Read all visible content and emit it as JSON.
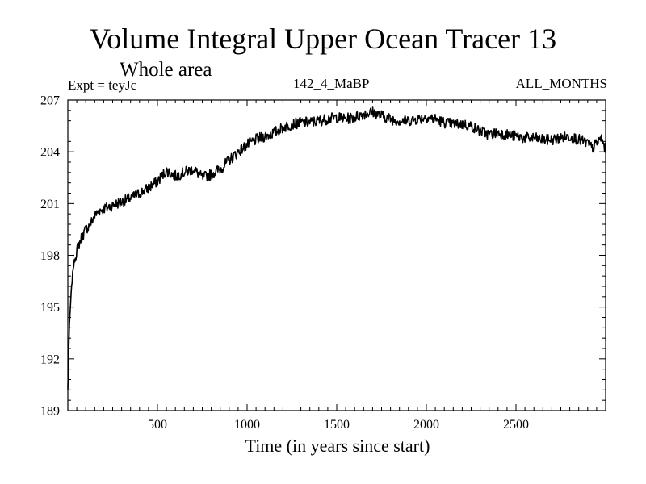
{
  "chart_data": {
    "type": "line",
    "title": "Volume Integral Upper Ocean Tracer 13",
    "subtitle": "Whole area",
    "expt_label": "Expt = teyJc",
    "run_label": "142_4_MaBP",
    "period_label": "ALL_MONTHS",
    "xlabel": "Time (in years since start)",
    "ylabel": "",
    "xlim": [
      0,
      3000
    ],
    "ylim": [
      189,
      207
    ],
    "x_ticks": [
      500,
      1000,
      1500,
      2000,
      2500
    ],
    "y_ticks": [
      189,
      192,
      195,
      198,
      201,
      204,
      207
    ],
    "x_tick_labels": [
      "500",
      "1000",
      "1500",
      "2000",
      "2500"
    ],
    "y_tick_labels": [
      "189",
      "192",
      "195",
      "198",
      "201",
      "204",
      "207"
    ],
    "line_color": "#000000",
    "series": [
      {
        "name": "Volume Integral Upper Ocean Tracer 13",
        "x": [
          0,
          5,
          10,
          20,
          30,
          50,
          75,
          100,
          125,
          150,
          175,
          200,
          250,
          300,
          350,
          400,
          450,
          500,
          550,
          600,
          650,
          700,
          750,
          800,
          850,
          900,
          950,
          1000,
          1050,
          1100,
          1150,
          1200,
          1250,
          1300,
          1350,
          1400,
          1450,
          1500,
          1550,
          1600,
          1650,
          1700,
          1750,
          1800,
          1850,
          1900,
          1950,
          2000,
          2050,
          2100,
          2150,
          2200,
          2250,
          2300,
          2350,
          2400,
          2450,
          2500,
          2550,
          2600,
          2650,
          2700,
          2750,
          2800,
          2850,
          2900,
          2925,
          2950,
          2975,
          3000
        ],
        "y": [
          190.2,
          192.5,
          194.2,
          196.0,
          197.3,
          198.3,
          199.0,
          199.5,
          199.8,
          200.3,
          200.6,
          200.7,
          200.9,
          201.1,
          201.3,
          201.6,
          201.9,
          202.3,
          202.9,
          202.6,
          202.8,
          203.0,
          202.5,
          202.7,
          203.0,
          203.5,
          204.0,
          204.4,
          204.7,
          204.9,
          205.1,
          205.4,
          205.6,
          205.7,
          205.7,
          205.8,
          205.9,
          206.0,
          205.9,
          206.0,
          206.2,
          206.3,
          206.1,
          205.9,
          205.8,
          205.8,
          205.9,
          206.0,
          205.9,
          205.7,
          205.6,
          205.6,
          205.5,
          205.2,
          205.0,
          205.1,
          205.0,
          204.9,
          204.8,
          204.8,
          204.7,
          204.7,
          204.8,
          204.9,
          204.7,
          204.5,
          204.2,
          204.5,
          204.8,
          204.1
        ]
      }
    ]
  }
}
